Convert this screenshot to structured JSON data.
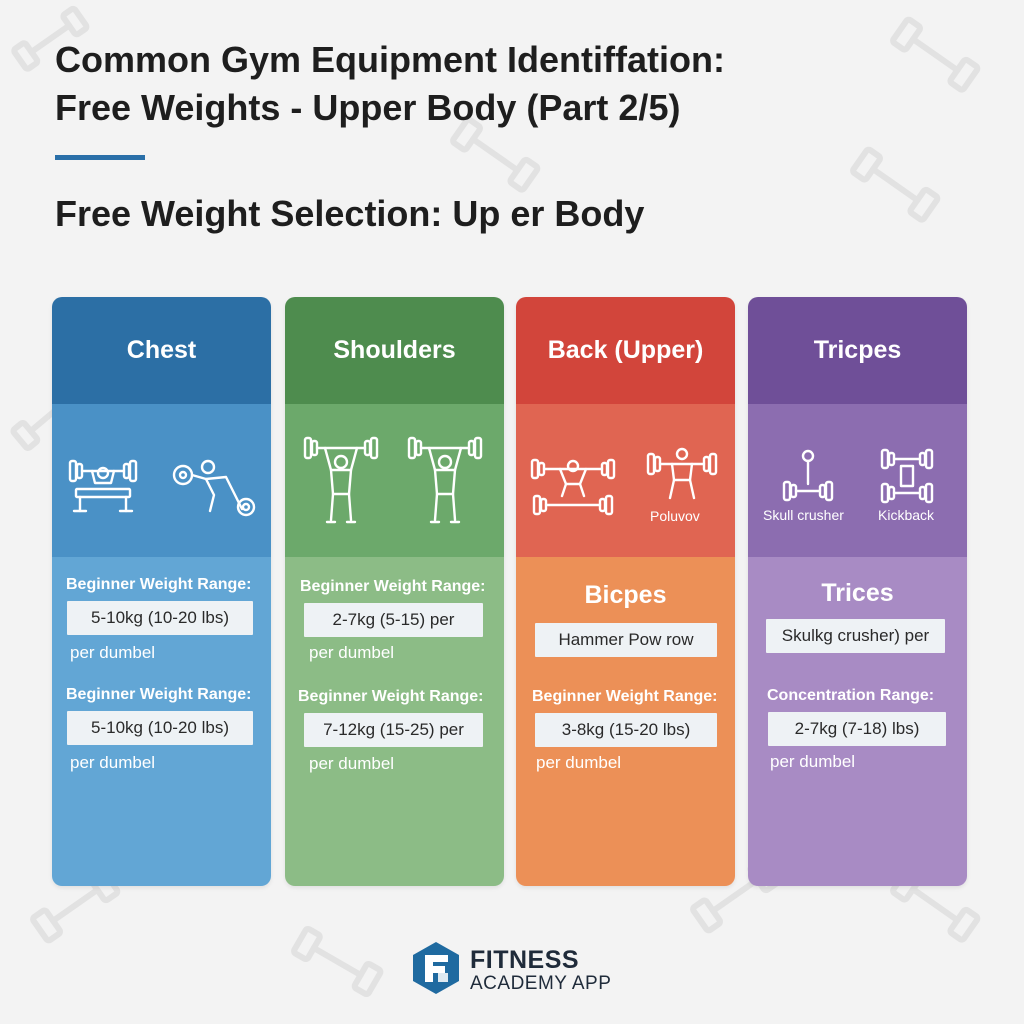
{
  "header": {
    "title_line1": "Common Gym Equipment Identiffation:",
    "title_line2": "Free Weights - Upper Body (Part 2/5)",
    "subtitle": "Free Weight Selection: Up er Body"
  },
  "cards": [
    {
      "title": "Chest",
      "label1": "Beginner Weight Range:",
      "value1": "5-10kg (10-20 lbs)",
      "note1": "per dumbel",
      "label2": "Beginner Weight Range:",
      "value2": "5-10kg (10-20 lbs)",
      "note2": "per dumbel",
      "colors": {
        "header": "#2c6fa5",
        "icons": "#4a91c6",
        "body": "#62a6d5"
      }
    },
    {
      "title": "Shoulders",
      "label1": "Beginner Weight Range:",
      "value1": "2-7kg (5-15) per",
      "note1": "per dumbel",
      "label2": "Beginner Weight Range:",
      "value2": "7-12kg (15-25) per",
      "note2": "per dumbel",
      "colors": {
        "header": "#4e8c4e",
        "icons": "#6ca96b",
        "body": "#8cbc86"
      }
    },
    {
      "title": "Back (Upper)",
      "icon_caption": "Poluvov",
      "section_title": "Bicpes",
      "value0": "Hammer Pow row",
      "label2": "Beginner Weight Range:",
      "value2": "3-8kg (15-20 lbs)",
      "note2": "per dumbel",
      "colors": {
        "header": "#d2453b",
        "icons": "#e06552",
        "body": "#ec9057"
      }
    },
    {
      "title": "Tricpes",
      "icon_caption1": "Skull crusher",
      "icon_caption2": "Kickback",
      "section_title": "Trices",
      "value0": "Skulkg crusher) per",
      "label2": "Concentration Range:",
      "value2": "2-7kg (7-18) lbs)",
      "note2": "per dumbel",
      "colors": {
        "header": "#6f4f98",
        "icons": "#8c6db0",
        "body": "#a88bc4"
      }
    }
  ],
  "brand": {
    "name": "FITNESS",
    "tagline": "ACADEMY APP",
    "logo_color": "#1f6aa0"
  }
}
